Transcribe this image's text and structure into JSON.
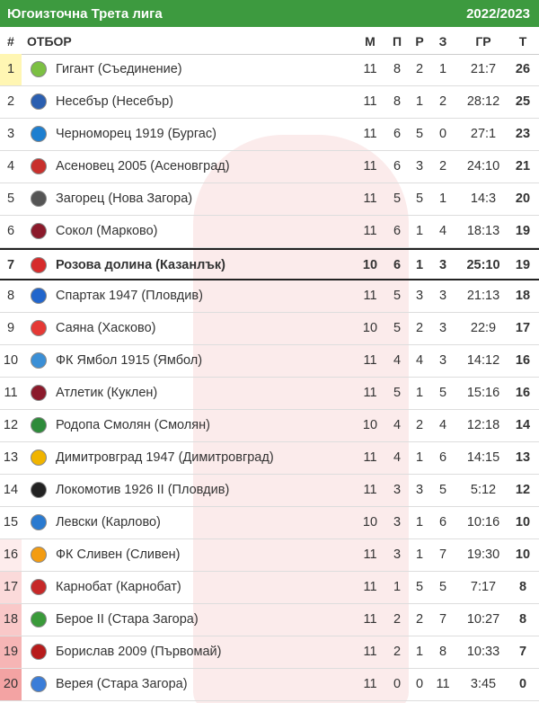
{
  "header": {
    "title": "Югоизточна Трета лига",
    "season": "2022/2023"
  },
  "table": {
    "columns": [
      "#",
      "ОТБОР",
      "М",
      "П",
      "Р",
      "З",
      "ГР",
      "Т"
    ],
    "rows": [
      [
        "1",
        "Гигант (Съединение)",
        "11",
        "8",
        "2",
        "1",
        "21:7",
        "26"
      ],
      [
        "2",
        "Несебър (Несебър)",
        "11",
        "8",
        "1",
        "2",
        "28:12",
        "25"
      ],
      [
        "3",
        "Черноморец 1919 (Бургас)",
        "11",
        "6",
        "5",
        "0",
        "27:1",
        "23"
      ],
      [
        "4",
        "Асеновец 2005 (Асеновград)",
        "11",
        "6",
        "3",
        "2",
        "24:10",
        "21"
      ],
      [
        "5",
        "Загорец (Нова Загора)",
        "11",
        "5",
        "5",
        "1",
        "14:3",
        "20"
      ],
      [
        "6",
        "Сокол (Марково)",
        "11",
        "6",
        "1",
        "4",
        "18:13",
        "19"
      ],
      [
        "7",
        "Розова долина (Казанлък)",
        "10",
        "6",
        "1",
        "3",
        "25:10",
        "19"
      ],
      [
        "8",
        "Спартак 1947 (Пловдив)",
        "11",
        "5",
        "3",
        "3",
        "21:13",
        "18"
      ],
      [
        "9",
        "Саяна (Хасково)",
        "10",
        "5",
        "2",
        "3",
        "22:9",
        "17"
      ],
      [
        "10",
        "ФК Ямбол 1915 (Ямбол)",
        "11",
        "4",
        "4",
        "3",
        "14:12",
        "16"
      ],
      [
        "11",
        "Атлетик (Куклен)",
        "11",
        "5",
        "1",
        "5",
        "15:16",
        "16"
      ],
      [
        "12",
        "Родопа Смолян (Смолян)",
        "10",
        "4",
        "2",
        "4",
        "12:18",
        "14"
      ],
      [
        "13",
        "Димитровград 1947 (Димитровград)",
        "11",
        "4",
        "1",
        "6",
        "14:15",
        "13"
      ],
      [
        "14",
        "Локомотив 1926 II (Пловдив)",
        "11",
        "3",
        "3",
        "5",
        "5:12",
        "12"
      ],
      [
        "15",
        "Левски (Карлово)",
        "10",
        "3",
        "1",
        "6",
        "10:16",
        "10"
      ],
      [
        "16",
        "ФК Сливен (Сливен)",
        "11",
        "3",
        "1",
        "7",
        "19:30",
        "10"
      ],
      [
        "17",
        "Карнобат (Карнобат)",
        "11",
        "1",
        "5",
        "5",
        "7:17",
        "8"
      ],
      [
        "18",
        "Берое II (Стара Загора)",
        "11",
        "2",
        "2",
        "7",
        "10:27",
        "8"
      ],
      [
        "19",
        "Борислав 2009 (Първомай)",
        "11",
        "2",
        "1",
        "8",
        "10:33",
        "7"
      ],
      [
        "20",
        "Верея (Стара Загора)",
        "11",
        "0",
        "0",
        "11",
        "3:45",
        "0"
      ]
    ]
  }
}
